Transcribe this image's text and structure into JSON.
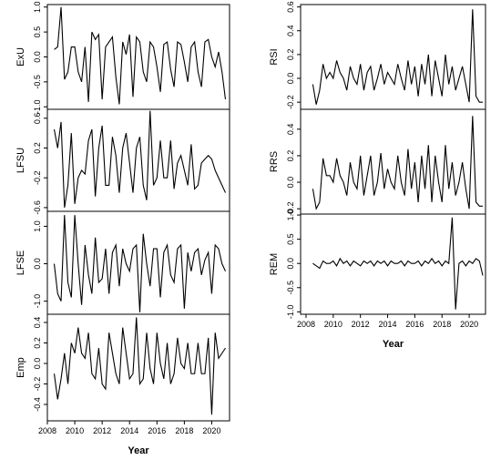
{
  "chart_data": [
    {
      "type": "line",
      "ylabel": "ExU",
      "color": "#000000",
      "xlim": [
        2008,
        2021.3
      ],
      "ylim": [
        -1.05,
        1.05
      ],
      "yticks": [
        {
          "value": -1,
          "label": "-1.0"
        },
        -0.5,
        {
          "value": 0,
          "label": "0.0"
        },
        0.5,
        {
          "value": 1,
          "label": "1.0"
        }
      ],
      "x": [
        2008.5,
        2008.75,
        2009,
        2009.25,
        2009.5,
        2009.75,
        2010,
        2010.25,
        2010.5,
        2010.75,
        2011,
        2011.25,
        2011.5,
        2011.75,
        2012,
        2012.25,
        2012.5,
        2012.75,
        2013,
        2013.25,
        2013.5,
        2013.75,
        2014,
        2014.25,
        2014.5,
        2014.75,
        2015,
        2015.25,
        2015.5,
        2015.75,
        2016,
        2016.25,
        2016.5,
        2016.75,
        2017,
        2017.25,
        2017.5,
        2017.75,
        2018,
        2018.25,
        2018.5,
        2018.75,
        2019,
        2019.25,
        2019.5,
        2019.75,
        2020,
        2020.25,
        2020.5,
        2020.75,
        2021
      ],
      "values": [
        0.15,
        0.2,
        1.0,
        -0.45,
        -0.3,
        0.2,
        0.2,
        -0.3,
        -0.5,
        0.2,
        -0.9,
        0.5,
        0.35,
        0.45,
        -0.85,
        0.2,
        0.3,
        0.4,
        -0.4,
        -0.95,
        0.3,
        0.05,
        0.45,
        -0.8,
        0.4,
        0.3,
        -0.3,
        -0.5,
        0.3,
        0.2,
        -0.2,
        -0.7,
        0.25,
        0.3,
        -0.25,
        -0.6,
        0.3,
        0.25,
        -0.1,
        -0.5,
        0.2,
        0.3,
        -0.3,
        -0.6,
        0.3,
        0.35,
        0.0,
        -0.2,
        0.1,
        -0.3,
        -0.85
      ]
    },
    {
      "type": "line",
      "ylabel": "LFSU",
      "color": "#000000",
      "xlim": [
        2008,
        2021.3
      ],
      "ylim": [
        -0.65,
        0.72
      ],
      "yticks": [
        -0.6,
        -0.2,
        0.2,
        0.6
      ],
      "x": [
        2008.5,
        2008.75,
        2009,
        2009.25,
        2009.5,
        2009.75,
        2010,
        2010.25,
        2010.5,
        2010.75,
        2011,
        2011.25,
        2011.5,
        2011.75,
        2012,
        2012.25,
        2012.5,
        2012.75,
        2013,
        2013.25,
        2013.5,
        2013.75,
        2014,
        2014.25,
        2014.5,
        2014.75,
        2015,
        2015.25,
        2015.5,
        2015.75,
        2016,
        2016.25,
        2016.5,
        2016.75,
        2017,
        2017.25,
        2017.5,
        2017.75,
        2018,
        2018.25,
        2018.5,
        2018.75,
        2019,
        2019.25,
        2019.5,
        2019.75,
        2020,
        2020.25,
        2020.5,
        2020.75,
        2021
      ],
      "values": [
        0.45,
        0.2,
        0.55,
        -0.6,
        -0.3,
        0.4,
        -0.55,
        -0.2,
        -0.1,
        -0.15,
        0.3,
        0.45,
        -0.45,
        0.2,
        0.5,
        -0.3,
        -0.3,
        0.35,
        0.1,
        -0.4,
        0.2,
        0.4,
        0.0,
        -0.4,
        0.2,
        0.35,
        -0.3,
        -0.5,
        0.7,
        -0.3,
        -0.2,
        0.3,
        -0.2,
        -0.2,
        0.3,
        -0.35,
        0.0,
        0.1,
        -0.1,
        -0.3,
        0.25,
        -0.35,
        -0.3,
        0.0,
        0.05,
        0.1,
        0.05,
        -0.1,
        -0.2,
        -0.3,
        -0.4
      ]
    },
    {
      "type": "line",
      "ylabel": "LFSE",
      "color": "#000000",
      "xlim": [
        2008,
        2021.3
      ],
      "ylim": [
        -1.35,
        1.4
      ],
      "yticks": [
        {
          "value": -1,
          "label": "-1.0"
        },
        {
          "value": 0,
          "label": "0.0"
        },
        {
          "value": 1,
          "label": "1.0"
        }
      ],
      "x": [
        2008.5,
        2008.75,
        2009,
        2009.25,
        2009.5,
        2009.75,
        2010,
        2010.25,
        2010.5,
        2010.75,
        2011,
        2011.25,
        2011.5,
        2011.75,
        2012,
        2012.25,
        2012.5,
        2012.75,
        2013,
        2013.25,
        2013.5,
        2013.75,
        2014,
        2014.25,
        2014.5,
        2014.75,
        2015,
        2015.25,
        2015.5,
        2015.75,
        2016,
        2016.25,
        2016.5,
        2016.75,
        2017,
        2017.25,
        2017.5,
        2017.75,
        2018,
        2018.25,
        2018.5,
        2018.75,
        2019,
        2019.25,
        2019.5,
        2019.75,
        2020,
        2020.25,
        2020.5,
        2020.75,
        2021
      ],
      "values": [
        0.0,
        -0.8,
        -1.0,
        1.3,
        -0.5,
        -0.9,
        1.3,
        0.0,
        -1.1,
        0.5,
        -0.3,
        -0.8,
        0.7,
        -0.5,
        -0.4,
        0.4,
        -0.8,
        0.3,
        0.5,
        -0.6,
        0.4,
        0.0,
        -0.2,
        0.4,
        0.5,
        -1.3,
        0.8,
        0.0,
        -0.6,
        0.4,
        0.4,
        -0.9,
        0.3,
        0.5,
        -0.3,
        -0.5,
        0.4,
        0.5,
        -1.2,
        0.3,
        -0.2,
        0.3,
        0.4,
        -0.3,
        0.1,
        0.3,
        -0.8,
        0.5,
        0.4,
        0.0,
        -0.2
      ]
    },
    {
      "type": "line",
      "ylabel": "Emp",
      "xlabel": "Year",
      "color": "#000000",
      "xlim": [
        2008,
        2021.3
      ],
      "ylim": [
        -0.56,
        0.48
      ],
      "yticks": [
        -0.4,
        -0.2,
        {
          "value": 0,
          "label": "0.0"
        },
        0.2,
        0.4
      ],
      "xticks": [
        2008,
        2010,
        2012,
        2014,
        2016,
        2018,
        2020
      ],
      "x": [
        2008.5,
        2008.75,
        2009,
        2009.25,
        2009.5,
        2009.75,
        2010,
        2010.25,
        2010.5,
        2010.75,
        2011,
        2011.25,
        2011.5,
        2011.75,
        2012,
        2012.25,
        2012.5,
        2012.75,
        2013,
        2013.25,
        2013.5,
        2013.75,
        2014,
        2014.25,
        2014.5,
        2014.75,
        2015,
        2015.25,
        2015.5,
        2015.75,
        2016,
        2016.25,
        2016.5,
        2016.75,
        2017,
        2017.25,
        2017.5,
        2017.75,
        2018,
        2018.25,
        2018.5,
        2018.75,
        2019,
        2019.25,
        2019.5,
        2019.75,
        2020,
        2020.25,
        2020.5,
        2020.75,
        2021
      ],
      "values": [
        -0.1,
        -0.35,
        -0.15,
        0.1,
        -0.2,
        0.2,
        0.1,
        0.35,
        0.1,
        0.05,
        0.3,
        -0.1,
        -0.15,
        0.15,
        -0.2,
        -0.25,
        0.3,
        0.1,
        -0.1,
        -0.2,
        0.35,
        0.1,
        -0.15,
        -0.1,
        0.45,
        -0.2,
        -0.15,
        0.3,
        -0.05,
        -0.2,
        0.3,
        0.0,
        -0.15,
        0.2,
        -0.2,
        -0.1,
        0.25,
        0.0,
        -0.05,
        0.2,
        -0.1,
        -0.1,
        0.2,
        -0.1,
        -0.1,
        0.25,
        -0.5,
        0.3,
        0.05,
        0.1,
        0.15
      ]
    },
    {
      "type": "line",
      "ylabel": "RSI",
      "color": "#000000",
      "xlim": [
        2007.6,
        2021.2
      ],
      "ylim": [
        -0.26,
        0.62
      ],
      "yticks": [
        -0.2,
        {
          "value": 0,
          "label": "0.0"
        },
        0.2,
        0.4,
        0.6
      ],
      "x": [
        2008.5,
        2008.75,
        2009,
        2009.25,
        2009.5,
        2009.75,
        2010,
        2010.25,
        2010.5,
        2010.75,
        2011,
        2011.25,
        2011.5,
        2011.75,
        2012,
        2012.25,
        2012.5,
        2012.75,
        2013,
        2013.25,
        2013.5,
        2013.75,
        2014,
        2014.25,
        2014.5,
        2014.75,
        2015,
        2015.25,
        2015.5,
        2015.75,
        2016,
        2016.25,
        2016.5,
        2016.75,
        2017,
        2017.25,
        2017.5,
        2017.75,
        2018,
        2018.25,
        2018.5,
        2018.75,
        2019,
        2019.25,
        2019.5,
        2019.75,
        2020,
        2020.25,
        2020.5,
        2020.75,
        2021
      ],
      "values": [
        -0.05,
        -0.22,
        -0.1,
        0.12,
        0.0,
        0.05,
        0.0,
        0.15,
        0.05,
        0.0,
        -0.1,
        0.1,
        0.0,
        -0.05,
        0.12,
        -0.1,
        0.05,
        0.1,
        -0.1,
        0.0,
        0.12,
        -0.05,
        0.05,
        0.0,
        -0.05,
        0.12,
        0.0,
        -0.1,
        0.15,
        -0.05,
        0.1,
        -0.15,
        0.12,
        -0.05,
        0.2,
        -0.15,
        0.15,
        0.0,
        -0.15,
        0.2,
        -0.05,
        0.1,
        -0.1,
        0.0,
        0.1,
        -0.05,
        -0.2,
        0.58,
        -0.15,
        -0.2,
        -0.2
      ]
    },
    {
      "type": "line",
      "ylabel": "RRS",
      "color": "#000000",
      "xlim": [
        2007.6,
        2021.2
      ],
      "ylim": [
        -0.24,
        0.55
      ],
      "yticks": [
        -0.2,
        {
          "value": 0,
          "label": "0.0"
        },
        0.2,
        0.4
      ],
      "x": [
        2008.5,
        2008.75,
        2009,
        2009.25,
        2009.5,
        2009.75,
        2010,
        2010.25,
        2010.5,
        2010.75,
        2011,
        2011.25,
        2011.5,
        2011.75,
        2012,
        2012.25,
        2012.5,
        2012.75,
        2013,
        2013.25,
        2013.5,
        2013.75,
        2014,
        2014.25,
        2014.5,
        2014.75,
        2015,
        2015.25,
        2015.5,
        2015.75,
        2016,
        2016.25,
        2016.5,
        2016.75,
        2017,
        2017.25,
        2017.5,
        2017.75,
        2018,
        2018.25,
        2018.5,
        2018.75,
        2019,
        2019.25,
        2019.5,
        2019.75,
        2020,
        2020.25,
        2020.5,
        2020.75,
        2021
      ],
      "values": [
        -0.05,
        -0.2,
        -0.15,
        0.18,
        0.05,
        0.05,
        0.0,
        0.18,
        0.05,
        0.0,
        -0.1,
        0.15,
        0.0,
        -0.05,
        0.2,
        -0.1,
        0.05,
        0.2,
        -0.1,
        0.0,
        0.22,
        -0.05,
        0.1,
        0.0,
        -0.05,
        0.2,
        0.0,
        -0.1,
        0.25,
        -0.05,
        0.15,
        -0.15,
        0.2,
        -0.05,
        0.28,
        -0.15,
        0.2,
        0.0,
        -0.15,
        0.28,
        -0.05,
        0.15,
        -0.1,
        0.0,
        0.15,
        -0.05,
        -0.2,
        0.5,
        -0.15,
        -0.18,
        -0.18
      ]
    },
    {
      "type": "line",
      "ylabel": "REM",
      "xlabel": "Year",
      "color": "#000000",
      "xlim": [
        2007.6,
        2021.2
      ],
      "ylim": [
        -1.05,
        1.02
      ],
      "yticks": [
        {
          "value": -1,
          "label": "-1.0"
        },
        -0.5,
        {
          "value": 0,
          "label": "0.0"
        },
        0.5,
        {
          "value": 1,
          "label": "1.0"
        }
      ],
      "xticks": [
        2008,
        2010,
        2012,
        2014,
        2016,
        2018,
        2020
      ],
      "x": [
        2008.5,
        2008.75,
        2009,
        2009.25,
        2009.5,
        2009.75,
        2010,
        2010.25,
        2010.5,
        2010.75,
        2011,
        2011.25,
        2011.5,
        2011.75,
        2012,
        2012.25,
        2012.5,
        2012.75,
        2013,
        2013.25,
        2013.5,
        2013.75,
        2014,
        2014.25,
        2014.5,
        2014.75,
        2015,
        2015.25,
        2015.5,
        2015.75,
        2016,
        2016.25,
        2016.5,
        2016.75,
        2017,
        2017.25,
        2017.5,
        2017.75,
        2018,
        2018.25,
        2018.5,
        2018.75,
        2019,
        2019.25,
        2019.5,
        2019.75,
        2020,
        2020.25,
        2020.5,
        2020.75,
        2021
      ],
      "values": [
        0.0,
        -0.05,
        -0.1,
        0.05,
        0.0,
        0.0,
        0.05,
        -0.05,
        0.1,
        0.0,
        0.05,
        -0.05,
        0.05,
        0.0,
        -0.05,
        0.05,
        0.0,
        0.05,
        -0.05,
        0.05,
        0.0,
        0.05,
        -0.05,
        0.05,
        0.0,
        0.0,
        0.05,
        -0.05,
        0.05,
        0.0,
        0.0,
        0.05,
        -0.05,
        0.05,
        0.0,
        0.1,
        0.0,
        0.05,
        -0.05,
        0.05,
        0.0,
        0.95,
        -0.95,
        0.0,
        0.05,
        -0.05,
        0.05,
        0.0,
        0.1,
        0.05,
        -0.25
      ]
    }
  ]
}
